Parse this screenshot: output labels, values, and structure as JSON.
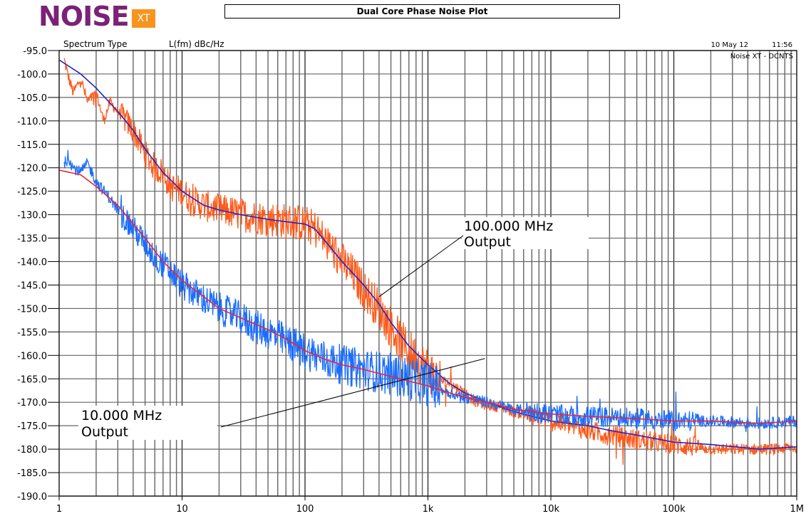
{
  "logo": {
    "word": "NOISE",
    "badge": "XT",
    "color": "#7a2277",
    "badge_color": "#f7941d"
  },
  "chart_data": {
    "type": "line",
    "title": "Dual Core Phase Noise Plot",
    "header_left": "Spectrum Type",
    "ylabel": "L(fm) dBc/Hz",
    "date": "10 May 12",
    "time": "11:56",
    "instrument": "Noise XT - DCNTS",
    "x_scale": "log",
    "xlim": [
      1,
      1000000
    ],
    "ylim": [
      -190,
      -95
    ],
    "yticks": [
      -95,
      -100,
      -105,
      -110,
      -115,
      -120,
      -125,
      -130,
      -135,
      -140,
      -145,
      -150,
      -155,
      -160,
      -165,
      -170,
      -175,
      -180,
      -185,
      -190
    ],
    "xtick_labels": [
      "1",
      "10",
      "100",
      "1k",
      "10k",
      "100k",
      "1M"
    ],
    "xtick_values": [
      1,
      10,
      100,
      1000,
      10000,
      100000,
      1000000
    ],
    "grid": true,
    "series": [
      {
        "color": "#ff5a1a",
        "style": "raw",
        "x": [
          1.1,
          1.2,
          1.3,
          1.5,
          1.7,
          2,
          2.3,
          2.6,
          3,
          3.5,
          4,
          5,
          6,
          7,
          8,
          10,
          12,
          15,
          20,
          25,
          30,
          40,
          50,
          60,
          70,
          80,
          100,
          120,
          150,
          200,
          250,
          300,
          400,
          500,
          600,
          700,
          800,
          1000,
          1200,
          1500,
          2000,
          2500,
          3000,
          4000,
          5000,
          7000,
          10000,
          15000,
          20000,
          30000,
          50000,
          70000,
          100000,
          150000,
          200000,
          300000,
          500000,
          700000,
          900000,
          1000000
        ],
        "y": [
          -97,
          -101,
          -104,
          -101,
          -106,
          -104,
          -110,
          -106,
          -108,
          -110,
          -112,
          -117,
          -120,
          -121,
          -124,
          -125,
          -127,
          -128,
          -129,
          -129.5,
          -130,
          -130.5,
          -131,
          -131,
          -131.5,
          -131.5,
          -132,
          -133,
          -136,
          -140,
          -143,
          -146,
          -150,
          -154,
          -157,
          -159,
          -160.5,
          -163,
          -165,
          -166,
          -168,
          -170,
          -170.5,
          -171,
          -172,
          -173,
          -174,
          -175,
          -176,
          -177,
          -178,
          -178.5,
          -179,
          -179.5,
          -180,
          -180,
          -180,
          -180,
          -179.5,
          -180
        ]
      },
      {
        "color": "#2222cc",
        "style": "smooth",
        "x": [
          1,
          1.5,
          2,
          3,
          4,
          5,
          7,
          10,
          15,
          20,
          30,
          50,
          70,
          100,
          120,
          150,
          200,
          300,
          400,
          500,
          700,
          1000,
          1500,
          2000,
          3000,
          5000,
          10000,
          20000,
          30000,
          50000,
          100000,
          200000,
          500000,
          1000000
        ],
        "y": [
          -97,
          -100,
          -103,
          -108,
          -112,
          -116,
          -121,
          -125,
          -128,
          -129,
          -130,
          -131,
          -131.5,
          -132,
          -133,
          -136,
          -140,
          -145,
          -149,
          -153,
          -158,
          -162,
          -166,
          -168,
          -170,
          -172,
          -174,
          -175,
          -176,
          -177,
          -178.5,
          -179,
          -180,
          -179.5
        ]
      },
      {
        "color": "#1a6dff",
        "style": "raw",
        "x": [
          1.1,
          1.2,
          1.3,
          1.5,
          1.7,
          2,
          2.5,
          3,
          4,
          5,
          6,
          8,
          10,
          15,
          20,
          30,
          40,
          50,
          70,
          100,
          150,
          200,
          300,
          500,
          700,
          1000,
          1500,
          2000,
          3000,
          5000,
          10000,
          15000,
          20000,
          50000,
          100000,
          200000,
          500000,
          1000000
        ],
        "y": [
          -119,
          -118,
          -120,
          -121,
          -119,
          -123,
          -126,
          -129,
          -133,
          -136,
          -139,
          -142,
          -145,
          -148,
          -150,
          -152,
          -154,
          -155,
          -157,
          -159,
          -161,
          -162,
          -163,
          -164,
          -165,
          -166,
          -168,
          -169,
          -170,
          -171.5,
          -172.5,
          -173,
          -173,
          -173.5,
          -174,
          -174,
          -174.5,
          -174
        ]
      },
      {
        "color": "#ee2233",
        "style": "smooth",
        "x": [
          1,
          1.5,
          2,
          3,
          4,
          5,
          7,
          10,
          15,
          20,
          30,
          50,
          70,
          100,
          150,
          200,
          300,
          500,
          700,
          1000,
          1500,
          2000,
          3000,
          5000,
          10000,
          20000,
          50000,
          100000,
          200000,
          500000,
          1000000
        ],
        "y": [
          -120.5,
          -121.5,
          -124,
          -128,
          -132,
          -135,
          -140,
          -144,
          -147.5,
          -150,
          -152,
          -154.5,
          -156.5,
          -159,
          -161,
          -162,
          -163,
          -164.5,
          -165.5,
          -166.5,
          -168,
          -169,
          -170,
          -171.5,
          -172.5,
          -173,
          -173.5,
          -174,
          -174,
          -174.5,
          -174
        ]
      }
    ],
    "annotations": [
      {
        "lines": [
          "100.000 MHz",
          "Output"
        ],
        "pointer_x": 400,
        "pointer_y": -147.5
      },
      {
        "lines": [
          "10.000 MHz",
          "Output"
        ],
        "pointer_x": 300,
        "pointer_y": -162.5
      }
    ]
  }
}
